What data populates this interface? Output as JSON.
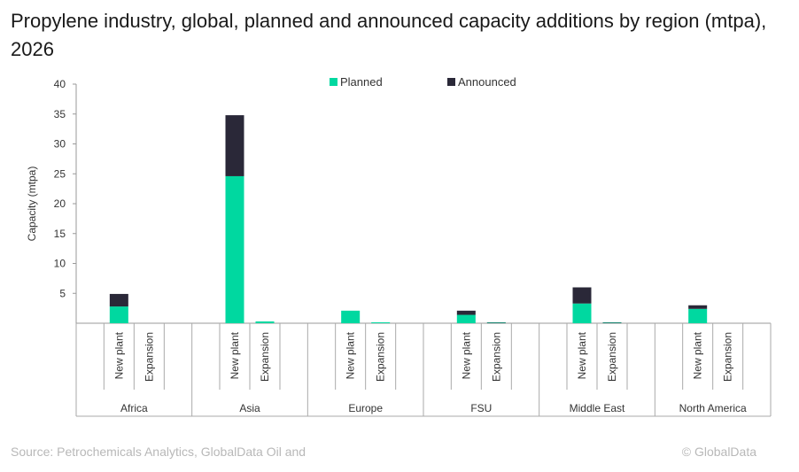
{
  "title": "Propylene industry, global, planned and announced capacity additions by region (mtpa), 2026",
  "footer": {
    "source": "Source: Petrochemicals Analytics, GlobalData Oil and",
    "copyright": "© GlobalData"
  },
  "chart_data": {
    "type": "bar",
    "stacked": true,
    "ylabel": "Capacity (mtpa)",
    "ylim": [
      0,
      40
    ],
    "yticks": [
      5,
      10,
      15,
      20,
      25,
      30,
      35,
      40
    ],
    "grid": false,
    "legend_position": "top",
    "regions": [
      "Africa",
      "Asia",
      "Europe",
      "FSU",
      "Middle East",
      "North America"
    ],
    "subcategories": [
      "New plant",
      "Expansion"
    ],
    "series": [
      {
        "name": "Planned",
        "color": "#00d8a0",
        "values": [
          [
            2.8,
            0.0
          ],
          [
            24.6,
            0.3
          ],
          [
            2.1,
            0.15
          ],
          [
            1.4,
            0.1
          ],
          [
            3.3,
            0.1
          ],
          [
            2.4,
            0.0
          ]
        ]
      },
      {
        "name": "Announced",
        "color": "#2a2838",
        "values": [
          [
            2.1,
            0.0
          ],
          [
            10.2,
            0.0
          ],
          [
            0.0,
            0.0
          ],
          [
            0.7,
            0.05
          ],
          [
            2.7,
            0.05
          ],
          [
            0.6,
            0.0
          ]
        ]
      }
    ]
  }
}
